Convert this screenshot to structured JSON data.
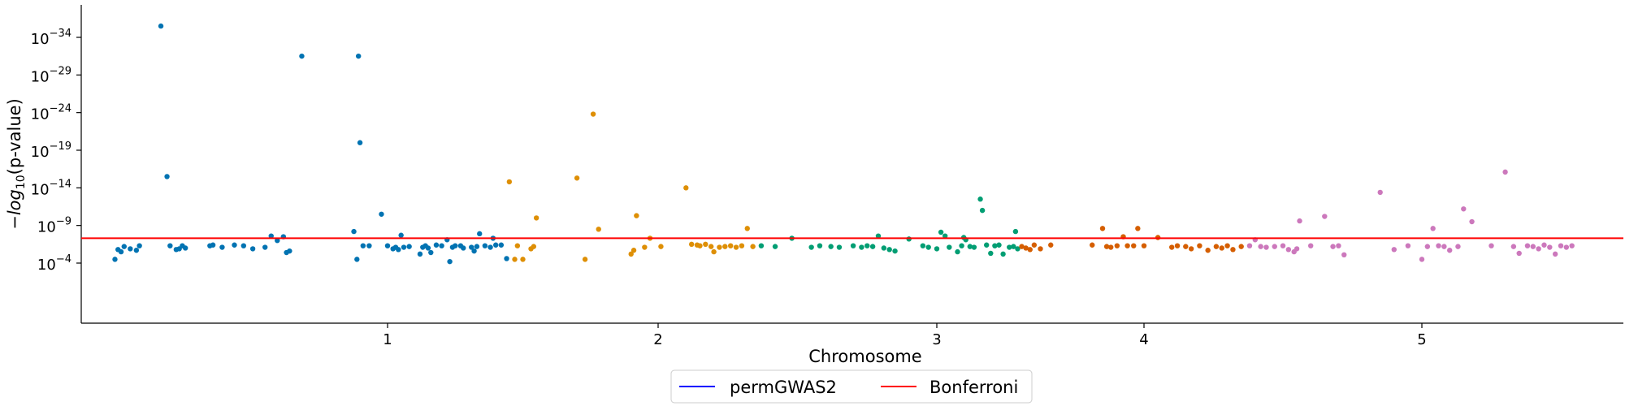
{
  "chart_data": {
    "type": "scatter",
    "title": "",
    "xlabel": "Chromosome",
    "ylabel": "−log10(p-value)",
    "ylabel_parts": {
      "prefix": "−",
      "func": "log",
      "sub": "10",
      "suffix": "(p-value)"
    },
    "y_scale": "log",
    "y_range_log10": [
      -2,
      -37
    ],
    "x_ticks": [
      {
        "label": "1",
        "pos": 1.0
      },
      {
        "label": "2",
        "pos": 2.0
      },
      {
        "label": "3",
        "pos": 3.0
      },
      {
        "label": "4",
        "pos": 4.0
      },
      {
        "label": "5",
        "pos": 5.0
      }
    ],
    "y_ticks": [
      {
        "base": "10",
        "exp": "−34",
        "log10": -34
      },
      {
        "base": "10",
        "exp": "−29",
        "log10": -29
      },
      {
        "base": "10",
        "exp": "−24",
        "log10": -24
      },
      {
        "base": "10",
        "exp": "−19",
        "log10": -19
      },
      {
        "base": "10",
        "exp": "−14",
        "log10": -14
      },
      {
        "base": "10",
        "exp": "−9",
        "log10": -9
      },
      {
        "base": "10",
        "exp": "−4",
        "log10": -4
      }
    ],
    "bonferroni_log10": -7.3,
    "legend": {
      "placement": "bottom-center",
      "entries": [
        {
          "label": "permGWAS2",
          "color": "#0000ff"
        },
        {
          "label": "Bonferroni",
          "color": "#ff0000"
        }
      ]
    },
    "chromosome_colors": {
      "1": "#0173b2",
      "2": "#de8f05",
      "3": "#029e73",
      "4": "#d55e00",
      "5": "#cc78bc"
    },
    "series": [
      {
        "chromosome": "1",
        "color": "#0173b2",
        "points": [
          [
            0.11,
            -4.5
          ],
          [
            0.12,
            -5.8
          ],
          [
            0.13,
            -5.5
          ],
          [
            0.14,
            -6.2
          ],
          [
            0.16,
            -5.9
          ],
          [
            0.18,
            -5.7
          ],
          [
            0.19,
            -6.3
          ],
          [
            0.26,
            -35.5
          ],
          [
            0.28,
            -15.5
          ],
          [
            0.29,
            -6.3
          ],
          [
            0.31,
            -5.8
          ],
          [
            0.32,
            -5.9
          ],
          [
            0.33,
            -6.3
          ],
          [
            0.34,
            -6
          ],
          [
            0.42,
            -6.3
          ],
          [
            0.43,
            -6.4
          ],
          [
            0.46,
            -6.1
          ],
          [
            0.5,
            -6.4
          ],
          [
            0.53,
            -6.3
          ],
          [
            0.56,
            -5.9
          ],
          [
            0.6,
            -6.1
          ],
          [
            0.62,
            -7.6
          ],
          [
            0.64,
            -7
          ],
          [
            0.66,
            -7.5
          ],
          [
            0.67,
            -5.4
          ],
          [
            0.68,
            -5.6
          ],
          [
            0.72,
            -31.5
          ],
          [
            0.89,
            -8.2
          ],
          [
            0.9,
            -4.5
          ],
          [
            0.905,
            -31.5
          ],
          [
            0.91,
            -20
          ],
          [
            0.92,
            -6.3
          ],
          [
            0.94,
            -6.3
          ],
          [
            0.98,
            -10.5
          ],
          [
            1.0,
            -6.3
          ],
          [
            1.02,
            -5.9
          ],
          [
            1.03,
            -6.1
          ],
          [
            1.04,
            -5.8
          ],
          [
            1.05,
            -7.7
          ],
          [
            1.06,
            -6.1
          ],
          [
            1.08,
            -6.2
          ],
          [
            1.12,
            -5.2
          ],
          [
            1.13,
            -6.1
          ],
          [
            1.14,
            -6.3
          ],
          [
            1.15,
            -6
          ],
          [
            1.16,
            -5.4
          ],
          [
            1.18,
            -6.4
          ],
          [
            1.2,
            -6.3
          ],
          [
            1.22,
            -7.1
          ],
          [
            1.23,
            -4.2
          ],
          [
            1.24,
            -6.1
          ],
          [
            1.25,
            -6.3
          ],
          [
            1.27,
            -6.3
          ],
          [
            1.28,
            -6
          ],
          [
            1.31,
            -6.1
          ],
          [
            1.32,
            -5.6
          ],
          [
            1.33,
            -6.2
          ],
          [
            1.34,
            -7.9
          ],
          [
            1.36,
            -6.3
          ],
          [
            1.38,
            -6.1
          ],
          [
            1.39,
            -7.3
          ],
          [
            1.4,
            -6.4
          ],
          [
            1.42,
            -6.4
          ],
          [
            1.44,
            -4.6
          ]
        ]
      },
      {
        "chromosome": "2",
        "color": "#de8f05",
        "points": [
          [
            1.45,
            -14.8
          ],
          [
            1.47,
            -4.5
          ],
          [
            1.48,
            -6.3
          ],
          [
            1.5,
            -4.5
          ],
          [
            1.53,
            -5.9
          ],
          [
            1.54,
            -6.2
          ],
          [
            1.55,
            -10
          ],
          [
            1.7,
            -15.3
          ],
          [
            1.73,
            -4.5
          ],
          [
            1.78,
            -8.5
          ],
          [
            1.9,
            -5.2
          ],
          [
            1.91,
            -5.7
          ],
          [
            1.92,
            -10.3
          ],
          [
            1.95,
            -6.1
          ],
          [
            1.97,
            -7.3
          ],
          [
            2.01,
            -6.2
          ],
          [
            2.1,
            -14
          ],
          [
            2.12,
            -6.5
          ],
          [
            2.14,
            -6.4
          ],
          [
            2.15,
            -6.3
          ],
          [
            2.17,
            -6.5
          ],
          [
            2.19,
            -6.2
          ],
          [
            2.2,
            -5.5
          ],
          [
            2.22,
            -6.1
          ],
          [
            2.24,
            -6.2
          ],
          [
            2.26,
            -6.3
          ],
          [
            2.28,
            -6.1
          ],
          [
            2.3,
            -6.3
          ],
          [
            2.32,
            -8.6
          ],
          [
            2.34,
            -6.2
          ],
          [
            1.76,
            -23.8
          ]
        ]
      },
      {
        "chromosome": "3",
        "color": "#029e73",
        "points": [
          [
            2.37,
            -6.3
          ],
          [
            2.42,
            -6.2
          ],
          [
            2.48,
            -7.3
          ],
          [
            2.55,
            -6.1
          ],
          [
            2.58,
            -6.3
          ],
          [
            2.62,
            -6.2
          ],
          [
            2.65,
            -6.1
          ],
          [
            2.7,
            -6.3
          ],
          [
            2.73,
            -6.1
          ],
          [
            2.75,
            -6.3
          ],
          [
            2.77,
            -6.2
          ],
          [
            2.79,
            -7.6
          ],
          [
            2.81,
            -6
          ],
          [
            2.83,
            -5.8
          ],
          [
            2.85,
            -5.6
          ],
          [
            2.9,
            -7.2
          ],
          [
            2.95,
            -6.3
          ],
          [
            2.97,
            -6.1
          ],
          [
            3.0,
            -5.9
          ],
          [
            3.02,
            -8.1
          ],
          [
            3.04,
            -7.6
          ],
          [
            3.06,
            -6.1
          ],
          [
            3.1,
            -5.5
          ],
          [
            3.12,
            -6.3
          ],
          [
            3.13,
            -7.4
          ],
          [
            3.14,
            -7.1
          ],
          [
            3.16,
            -6.2
          ],
          [
            3.18,
            -6.1
          ],
          [
            3.21,
            -12.5
          ],
          [
            3.22,
            -11
          ],
          [
            3.24,
            -6.4
          ],
          [
            3.26,
            -5.3
          ],
          [
            3.28,
            -6.3
          ],
          [
            3.3,
            -6.4
          ],
          [
            3.32,
            -5.2
          ],
          [
            3.35,
            -6.1
          ],
          [
            3.37,
            -6.2
          ],
          [
            3.38,
            -8.2
          ],
          [
            3.39,
            -5.9
          ]
        ]
      },
      {
        "chromosome": "4",
        "color": "#d55e00",
        "points": [
          [
            3.41,
            -6.2
          ],
          [
            3.43,
            -6
          ],
          [
            3.45,
            -5.8
          ],
          [
            3.47,
            -6.4
          ],
          [
            3.5,
            -5.9
          ],
          [
            3.55,
            -6.4
          ],
          [
            3.75,
            -6.4
          ],
          [
            3.8,
            -8.6
          ],
          [
            3.82,
            -6.2
          ],
          [
            3.84,
            -6.1
          ],
          [
            3.87,
            -6.3
          ],
          [
            3.9,
            -7.5
          ],
          [
            3.92,
            -6.3
          ],
          [
            3.95,
            -6.3
          ],
          [
            3.97,
            -8.6
          ],
          [
            4.0,
            -6.3
          ],
          [
            4.05,
            -7.4
          ],
          [
            4.1,
            -6.1
          ],
          [
            4.12,
            -6.3
          ],
          [
            4.15,
            -6.2
          ],
          [
            4.17,
            -5.9
          ],
          [
            4.2,
            -6.3
          ],
          [
            4.23,
            -5.7
          ],
          [
            4.26,
            -6.2
          ],
          [
            4.28,
            -6
          ],
          [
            4.3,
            -6.3
          ],
          [
            4.32,
            -5.8
          ],
          [
            4.35,
            -6.2
          ]
        ]
      },
      {
        "chromosome": "5",
        "color": "#cc78bc",
        "points": [
          [
            4.38,
            -6.3
          ],
          [
            4.4,
            -7.1
          ],
          [
            4.42,
            -6.2
          ],
          [
            4.44,
            -6.1
          ],
          [
            4.47,
            -6.2
          ],
          [
            4.5,
            -6.3
          ],
          [
            4.52,
            -5.8
          ],
          [
            4.54,
            -5.5
          ],
          [
            4.55,
            -5.9
          ],
          [
            4.56,
            -9.6
          ],
          [
            4.6,
            -6.3
          ],
          [
            4.65,
            -10.2
          ],
          [
            4.68,
            -6.2
          ],
          [
            4.7,
            -6.3
          ],
          [
            4.72,
            -5.1
          ],
          [
            4.85,
            -13.4
          ],
          [
            4.9,
            -5.8
          ],
          [
            4.95,
            -6.3
          ],
          [
            5.0,
            -4.5
          ],
          [
            5.02,
            -6.2
          ],
          [
            5.04,
            -8.6
          ],
          [
            5.06,
            -6.3
          ],
          [
            5.08,
            -6.2
          ],
          [
            5.1,
            -5.7
          ],
          [
            5.13,
            -6.2
          ],
          [
            5.15,
            -11.2
          ],
          [
            5.18,
            -9.5
          ],
          [
            5.25,
            -6.3
          ],
          [
            5.3,
            -16.1
          ],
          [
            5.33,
            -6.2
          ],
          [
            5.35,
            -5.3
          ],
          [
            5.38,
            -6.3
          ],
          [
            5.4,
            -6.2
          ],
          [
            5.42,
            -5.9
          ],
          [
            5.44,
            -6.4
          ],
          [
            5.46,
            -6.1
          ],
          [
            5.48,
            -5.2
          ],
          [
            5.5,
            -6.3
          ],
          [
            5.52,
            -6.1
          ],
          [
            5.54,
            -6.3
          ]
        ]
      }
    ]
  }
}
